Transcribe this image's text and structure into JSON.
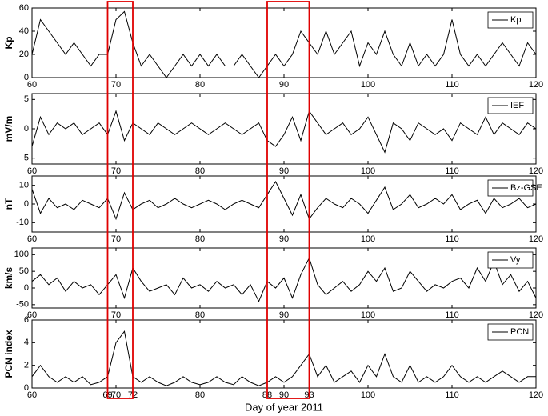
{
  "chart_data": [
    {
      "type": "line",
      "ylabel": "Kp",
      "color": "#000000",
      "xlim": [
        60,
        120
      ],
      "xticks": [
        60,
        70,
        80,
        90,
        100,
        110,
        120
      ],
      "ylim": [
        0,
        60
      ],
      "yticks": [
        0,
        20,
        40,
        60
      ],
      "x": [
        60,
        61,
        62,
        63,
        64,
        65,
        66,
        67,
        68,
        69,
        70,
        71,
        72,
        73,
        74,
        75,
        76,
        77,
        78,
        79,
        80,
        81,
        82,
        83,
        84,
        85,
        86,
        87,
        88,
        89,
        90,
        91,
        92,
        93,
        94,
        95,
        96,
        97,
        98,
        99,
        100,
        101,
        102,
        103,
        104,
        105,
        106,
        107,
        108,
        109,
        110,
        111,
        112,
        113,
        114,
        115,
        116,
        117,
        118,
        119,
        120
      ],
      "series": [
        {
          "name": "Kp",
          "color": "#000000",
          "values": [
            20,
            50,
            40,
            30,
            20,
            30,
            20,
            10,
            20,
            20,
            50,
            57,
            30,
            10,
            20,
            10,
            0,
            10,
            20,
            10,
            20,
            10,
            20,
            10,
            10,
            20,
            10,
            0,
            10,
            20,
            10,
            20,
            40,
            30,
            20,
            40,
            20,
            30,
            40,
            10,
            30,
            20,
            40,
            20,
            10,
            30,
            10,
            20,
            10,
            20,
            50,
            20,
            10,
            20,
            10,
            20,
            30,
            20,
            10,
            30,
            20
          ]
        }
      ]
    },
    {
      "type": "line",
      "ylabel": "mV/m",
      "xlim": [
        60,
        120
      ],
      "xticks": [
        60,
        70,
        80,
        90,
        100,
        110,
        120
      ],
      "ylim": [
        -6,
        6
      ],
      "yticks": [
        -5,
        0,
        5
      ],
      "x": [
        60,
        61,
        62,
        63,
        64,
        65,
        66,
        67,
        68,
        69,
        70,
        71,
        72,
        73,
        74,
        75,
        76,
        77,
        78,
        79,
        80,
        81,
        82,
        83,
        84,
        85,
        86,
        87,
        88,
        89,
        90,
        91,
        92,
        93,
        94,
        95,
        96,
        97,
        98,
        99,
        100,
        101,
        102,
        103,
        104,
        105,
        106,
        107,
        108,
        109,
        110,
        111,
        112,
        113,
        114,
        115,
        116,
        117,
        118,
        119,
        120
      ],
      "series": [
        {
          "name": "IEF",
          "color": "#000000",
          "values": [
            -3,
            2,
            -1,
            1,
            0,
            1,
            -1,
            0,
            1,
            -1,
            3,
            -2,
            1,
            0,
            -1,
            1,
            0,
            -1,
            0,
            1,
            0,
            -1,
            0,
            1,
            0,
            -1,
            0,
            1,
            -2,
            -3,
            -1,
            2,
            -2,
            3,
            1,
            -1,
            0,
            1,
            -1,
            0,
            2,
            -1,
            -4,
            1,
            0,
            -2,
            1,
            0,
            -1,
            0,
            -2,
            1,
            0,
            -1,
            2,
            -1,
            1,
            0,
            -1,
            1,
            0
          ]
        }
      ]
    },
    {
      "type": "line",
      "ylabel": "nT",
      "xlim": [
        60,
        120
      ],
      "xticks": [
        60,
        70,
        80,
        90,
        100,
        110,
        120
      ],
      "ylim": [
        -15,
        15
      ],
      "yticks": [
        -10,
        0,
        10
      ],
      "x": [
        60,
        61,
        62,
        63,
        64,
        65,
        66,
        67,
        68,
        69,
        70,
        71,
        72,
        73,
        74,
        75,
        76,
        77,
        78,
        79,
        80,
        81,
        82,
        83,
        84,
        85,
        86,
        87,
        88,
        89,
        90,
        91,
        92,
        93,
        94,
        95,
        96,
        97,
        98,
        99,
        100,
        101,
        102,
        103,
        104,
        105,
        106,
        107,
        108,
        109,
        110,
        111,
        112,
        113,
        114,
        115,
        116,
        117,
        118,
        119,
        120
      ],
      "series": [
        {
          "name": "Bz-GSE",
          "color": "#000000",
          "values": [
            8,
            -5,
            3,
            -2,
            0,
            -3,
            2,
            0,
            -2,
            3,
            -8,
            6,
            -3,
            0,
            2,
            -2,
            0,
            3,
            0,
            -2,
            0,
            2,
            0,
            -3,
            0,
            2,
            0,
            -2,
            5,
            12,
            3,
            -6,
            5,
            -8,
            -2,
            3,
            0,
            -2,
            3,
            0,
            -5,
            2,
            9,
            -3,
            0,
            5,
            -2,
            0,
            3,
            0,
            5,
            -3,
            0,
            2,
            -5,
            3,
            -2,
            0,
            3,
            -2,
            0
          ]
        }
      ]
    },
    {
      "type": "line",
      "ylabel": "km/s",
      "xlim": [
        60,
        120
      ],
      "xticks": [
        60,
        70,
        80,
        90,
        100,
        110,
        120
      ],
      "ylim": [
        -60,
        120
      ],
      "yticks": [
        -50,
        0,
        50,
        100
      ],
      "x": [
        60,
        61,
        62,
        63,
        64,
        65,
        66,
        67,
        68,
        69,
        70,
        71,
        72,
        73,
        74,
        75,
        76,
        77,
        78,
        79,
        80,
        81,
        82,
        83,
        84,
        85,
        86,
        87,
        88,
        89,
        90,
        91,
        92,
        93,
        94,
        95,
        96,
        97,
        98,
        99,
        100,
        101,
        102,
        103,
        104,
        105,
        106,
        107,
        108,
        109,
        110,
        111,
        112,
        113,
        114,
        115,
        116,
        117,
        118,
        119,
        120
      ],
      "series": [
        {
          "name": "Vy",
          "color": "#000000",
          "values": [
            20,
            40,
            10,
            30,
            -10,
            20,
            0,
            10,
            -20,
            10,
            40,
            -30,
            60,
            20,
            -10,
            0,
            10,
            -20,
            30,
            0,
            10,
            -10,
            20,
            0,
            10,
            -20,
            10,
            -40,
            20,
            0,
            30,
            -30,
            40,
            90,
            10,
            -20,
            0,
            20,
            -10,
            10,
            50,
            20,
            60,
            -10,
            0,
            50,
            20,
            -10,
            10,
            0,
            20,
            30,
            0,
            60,
            20,
            80,
            10,
            40,
            -10,
            20,
            -30
          ]
        }
      ]
    },
    {
      "type": "line",
      "ylabel": "PCN index",
      "xlabel": "Day of year 2011",
      "xlim": [
        60,
        120
      ],
      "xticks": [
        60,
        69,
        70,
        72,
        80,
        88,
        90,
        93,
        100,
        110,
        120
      ],
      "ylim": [
        0,
        6
      ],
      "yticks": [
        0,
        2,
        4,
        6
      ],
      "x": [
        60,
        61,
        62,
        63,
        64,
        65,
        66,
        67,
        68,
        69,
        70,
        71,
        72,
        73,
        74,
        75,
        76,
        77,
        78,
        79,
        80,
        81,
        82,
        83,
        84,
        85,
        86,
        87,
        88,
        89,
        90,
        91,
        92,
        93,
        94,
        95,
        96,
        97,
        98,
        99,
        100,
        101,
        102,
        103,
        104,
        105,
        106,
        107,
        108,
        109,
        110,
        111,
        112,
        113,
        114,
        115,
        116,
        117,
        118,
        119,
        120
      ],
      "series": [
        {
          "name": "PCN",
          "color": "#000000",
          "values": [
            1,
            2,
            1,
            0.5,
            1,
            0.5,
            1,
            0.3,
            0.5,
            1,
            4,
            5,
            1,
            0.5,
            1,
            0.5,
            0.2,
            0.5,
            1,
            0.5,
            0.3,
            0.5,
            1,
            0.5,
            0.3,
            1,
            0.5,
            0.2,
            0.5,
            1,
            0.5,
            1,
            2,
            3,
            1,
            2,
            0.5,
            1,
            1.5,
            0.5,
            2,
            1,
            3,
            1,
            0.5,
            2,
            0.5,
            1,
            0.5,
            1,
            2,
            1,
            0.5,
            1,
            0.5,
            1,
            1.5,
            1,
            0.5,
            1,
            1
          ]
        }
      ]
    }
  ],
  "highlight_color": "#e00000",
  "highlights": [
    {
      "x0": 69,
      "x1": 72
    },
    {
      "x0": 88,
      "x1": 93
    }
  ]
}
